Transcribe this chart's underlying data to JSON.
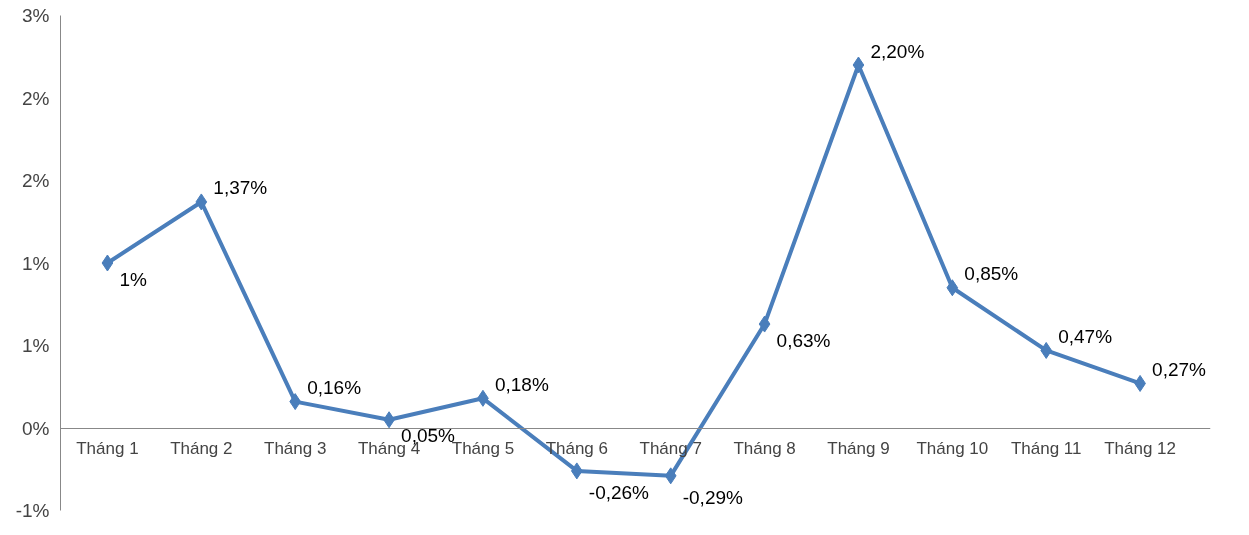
{
  "chart_data": {
    "type": "line",
    "categories": [
      "Tháng 1",
      "Tháng 2",
      "Tháng 3",
      "Tháng 4",
      "Tháng 5",
      "Tháng 6",
      "Tháng 7",
      "Tháng 8",
      "Tháng 9",
      "Tháng 10",
      "Tháng 11",
      "Tháng 12"
    ],
    "series": [
      {
        "color": "#4a7ebb",
        "values": [
          1,
          1.37,
          0.16,
          0.05,
          0.18,
          -0.26,
          -0.29,
          0.63,
          2.2,
          0.85,
          0.47,
          0.27
        ],
        "value_labels": [
          "1%",
          "1,37%",
          "0,16%",
          "0,05%",
          "0,18%",
          "-0,26%",
          "-0,29%",
          "0,63%",
          "2,20%",
          "0,85%",
          "0,47%",
          "0,27%"
        ]
      }
    ],
    "ylim": [
      -0.5,
      2.5
    ],
    "yticks": [
      {
        "value": -0.5,
        "label": "-1%"
      },
      {
        "value": 0,
        "label": "0%"
      },
      {
        "value": 0.5,
        "label": "1%"
      },
      {
        "value": 1,
        "label": "1%"
      },
      {
        "value": 1.5,
        "label": "2%"
      },
      {
        "value": 2,
        "label": "2%"
      },
      {
        "value": 2.5,
        "label": "3%"
      }
    ],
    "marker": "diamond",
    "grid": false
  }
}
